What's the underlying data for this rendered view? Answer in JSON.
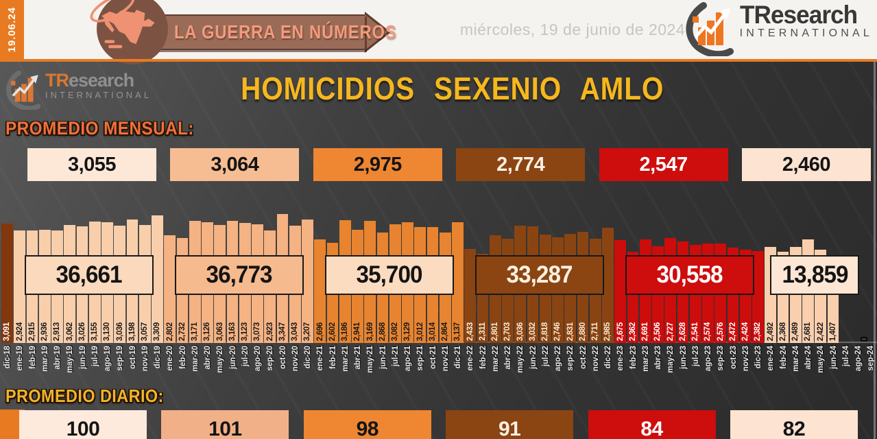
{
  "header": {
    "date_badge": "19.06.24",
    "banner_title": "LA GUERRA EN NÚMEROS",
    "date_text": "miércoles, 19 de junio de 2024",
    "logo_name": "TResearch",
    "logo_sub": "INTERNATIONAL"
  },
  "watermark": {
    "tr": "TR",
    "rest": "esearch",
    "sub": "INTERNATIONAL"
  },
  "title": "HOMICIDIOS SEXENIO AMLO",
  "labels": {
    "monthly_avg": "PROMEDIO MENSUAL:",
    "daily_avg": "PROMEDIO DIARIO:"
  },
  "colors": {
    "accent_orange": "#e87a22",
    "title_yellow": "#f6b71e",
    "monthly_label_orange": "#ef713c",
    "daily_label_yellow": "#f0b42a"
  },
  "monthly_averages": [
    {
      "value": "3,055",
      "bg": "#fde8d8",
      "fg": "#141414"
    },
    {
      "value": "3,064",
      "bg": "#f6bd93",
      "fg": "#141414"
    },
    {
      "value": "2,975",
      "bg": "#ee8632",
      "fg": "#141414"
    },
    {
      "value": "2,774",
      "bg": "#8a4513",
      "fg": "#fdf0e4"
    },
    {
      "value": "2,547",
      "bg": "#ce0d0d",
      "fg": "#ffffff"
    },
    {
      "value": "2,460",
      "bg": "#fde3d2",
      "fg": "#141414"
    }
  ],
  "daily_averages": [
    {
      "value": "100",
      "bg": "#fdeadd",
      "fg": "#141414"
    },
    {
      "value": "101",
      "bg": "#f2b088",
      "fg": "#141414"
    },
    {
      "value": "98",
      "bg": "#ee8632",
      "fg": "#141414"
    },
    {
      "value": "91",
      "bg": "#8a4513",
      "fg": "#fdf0e4"
    },
    {
      "value": "84",
      "bg": "#ce0d0d",
      "fg": "#ffffff"
    },
    {
      "value": "82",
      "bg": "#fde3d2",
      "fg": "#141414"
    }
  ],
  "chart_data": {
    "type": "bar",
    "title": "HOMICIDIOS SEXENIO AMLO",
    "ylim": [
      0,
      3347
    ],
    "months": [
      "dic-18",
      "ene-19",
      "feb-19",
      "mar-19",
      "abr-19",
      "may-19",
      "jun-19",
      "jul-19",
      "ago-19",
      "sep-19",
      "oct-19",
      "nov-19",
      "dic-19",
      "ene-20",
      "feb-20",
      "mar-20",
      "abr-20",
      "may-20",
      "jun-20",
      "jul-20",
      "ago-20",
      "sep-20",
      "oct-20",
      "nov-20",
      "dic-20",
      "ene-21",
      "feb-21",
      "mar-21",
      "abr-21",
      "may-21",
      "jun-21",
      "jul-21",
      "ago-21",
      "sep-21",
      "oct-21",
      "nov-21",
      "dic-21",
      "ene-22",
      "feb-22",
      "mar-22",
      "abr-22",
      "may-22",
      "jun-22",
      "jul-22",
      "ago-22",
      "sep-22",
      "oct-22",
      "nov-22",
      "dic-22",
      "ene-23",
      "feb-23",
      "mar-23",
      "abr-23",
      "may-23",
      "jun-23",
      "jul-23",
      "ago-23",
      "sep-23",
      "oct-23",
      "nov-23",
      "dic-23",
      "ene-24",
      "feb-24",
      "mar-24",
      "abr-24",
      "may-24",
      "jun-24",
      "jul-24",
      "ago-24",
      "sep-24"
    ],
    "values": [
      3091,
      2924,
      2915,
      2936,
      2913,
      3062,
      3026,
      3155,
      3130,
      3036,
      3198,
      3057,
      3309,
      2802,
      2732,
      3171,
      3126,
      3063,
      3163,
      3123,
      3073,
      2923,
      3347,
      3043,
      3207,
      2696,
      2602,
      3186,
      2941,
      3169,
      2868,
      3082,
      3129,
      3012,
      3014,
      2864,
      3137,
      2433,
      2311,
      2801,
      2703,
      3036,
      3032,
      2818,
      2746,
      2831,
      2880,
      2711,
      2985,
      2675,
      2362,
      2691,
      2506,
      2727,
      2628,
      2541,
      2574,
      2576,
      2472,
      2424,
      2382,
      2492,
      2368,
      2489,
      2681,
      2422,
      1407,
      null,
      null,
      null
    ],
    "display_values": [
      "3,091",
      "2,924",
      "2,915",
      "2,936",
      "2,913",
      "3,062",
      "3,026",
      "3,155",
      "3,130",
      "3,036",
      "3,198",
      "3,057",
      "3,309",
      "2,802",
      "2,732",
      "3,171",
      "3,126",
      "3,063",
      "3,163",
      "3,123",
      "3,073",
      "2,923",
      "3,347",
      "3,043",
      "3,207",
      "2,696",
      "2,602",
      "3,186",
      "2,941",
      "3,169",
      "2,868",
      "3,082",
      "3,129",
      "3,012",
      "3,014",
      "2,864",
      "3,137",
      "2,433",
      "2,311",
      "2,801",
      "2,703",
      "3,036",
      "3,032",
      "2,818",
      "2,746",
      "2,831",
      "2,880",
      "2,711",
      "2,985",
      "2,675",
      "2,362",
      "2,691",
      "2,506",
      "2,727",
      "2,628",
      "2,541",
      "2,574",
      "2,576",
      "2,472",
      "2,424",
      "2,382",
      "2,492",
      "2,368",
      "2,489",
      "2,681",
      "2,422",
      "1,407",
      null,
      null,
      null
    ],
    "groups": [
      {
        "name": "dic-18",
        "from": 0,
        "to": 0,
        "bar": "#83370c",
        "text": "#ffffff"
      },
      {
        "name": "2019",
        "from": 1,
        "to": 12,
        "bar": "#f9cfab",
        "text": "#1a1a1a"
      },
      {
        "name": "2020",
        "from": 13,
        "to": 24,
        "bar": "#f5b282",
        "text": "#1a1a1a"
      },
      {
        "name": "2021",
        "from": 25,
        "to": 36,
        "bar": "#e8842f",
        "text": "#1a1a1a"
      },
      {
        "name": "2022",
        "from": 37,
        "to": 48,
        "bar": "#8a4412",
        "text": "#f9ead6"
      },
      {
        "name": "2023",
        "from": 49,
        "to": 60,
        "bar": "#cd0c0c",
        "text": "#ffffff"
      },
      {
        "name": "2024",
        "from": 61,
        "to": 69,
        "bar": "#f9cfad",
        "text": "#1a1a1a"
      }
    ],
    "period_totals": [
      {
        "label": "36,661",
        "from": 1,
        "to": 12,
        "bg": "#fbd9bc",
        "fg": "#141414",
        "w": 188
      },
      {
        "label": "36,773",
        "from": 13,
        "to": 24,
        "bg": "#f5ba8e",
        "fg": "#141414",
        "w": 188
      },
      {
        "label": "35,700",
        "from": 25,
        "to": 36,
        "bg": "#fcdcc0",
        "fg": "#141414",
        "w": 188
      },
      {
        "label": "33,287",
        "from": 37,
        "to": 48,
        "bg": "#8a4513",
        "fg": "#fdf0e0",
        "w": 188
      },
      {
        "label": "30,558",
        "from": 49,
        "to": 60,
        "bg": "#ce0d0d",
        "fg": "#ffffff",
        "w": 188
      },
      {
        "label": "13,859",
        "from": 61,
        "to": 68,
        "bg": "#fde6d3",
        "fg": "#141414",
        "w": 130
      }
    ],
    "zero_marker_slot": 68
  }
}
